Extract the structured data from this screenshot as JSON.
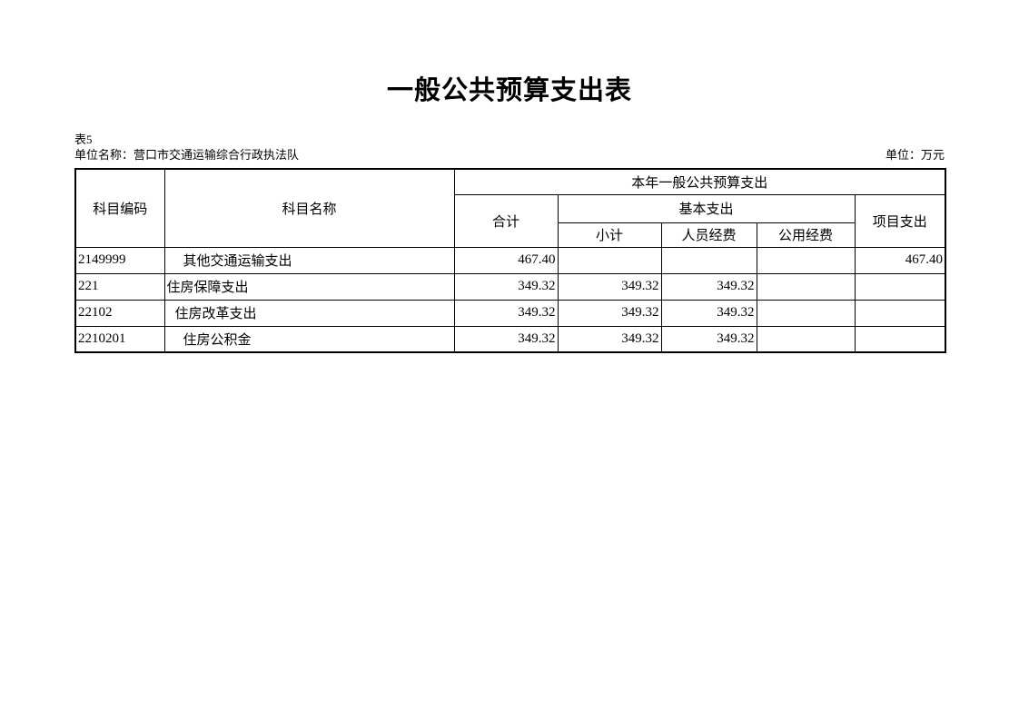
{
  "page": {
    "title": "一般公共预算支出表",
    "table_label": "表5",
    "unit_name": "单位名称：营口市交通运输综合行政执法队",
    "unit_of_measure": "单位：万元"
  },
  "table": {
    "header": {
      "subject_code": "科目编码",
      "subject_name": "科目名称",
      "current_year_budget": "本年一般公共预算支出",
      "total": "合计",
      "basic_expenditure": "基本支出",
      "subtotal": "小计",
      "personnel_funds": "人员经费",
      "public_funds": "公用经费",
      "project_expenditure": "项目支出"
    },
    "rows": [
      {
        "code": "2149999",
        "name": "其他交通运输支出",
        "indent": 2,
        "total": "467.40",
        "subtotal": "",
        "personnel": "",
        "public": "",
        "project": "467.40"
      },
      {
        "code": "221",
        "name": "住房保障支出",
        "indent": 0,
        "total": "349.32",
        "subtotal": "349.32",
        "personnel": "349.32",
        "public": "",
        "project": ""
      },
      {
        "code": "22102",
        "name": "住房改革支出",
        "indent": 1,
        "total": "349.32",
        "subtotal": "349.32",
        "personnel": "349.32",
        "public": "",
        "project": ""
      },
      {
        "code": "2210201",
        "name": "住房公积金",
        "indent": 2,
        "total": "349.32",
        "subtotal": "349.32",
        "personnel": "349.32",
        "public": "",
        "project": ""
      }
    ]
  },
  "colors": {
    "text": "#000000",
    "border": "#000000",
    "background": "#ffffff"
  }
}
